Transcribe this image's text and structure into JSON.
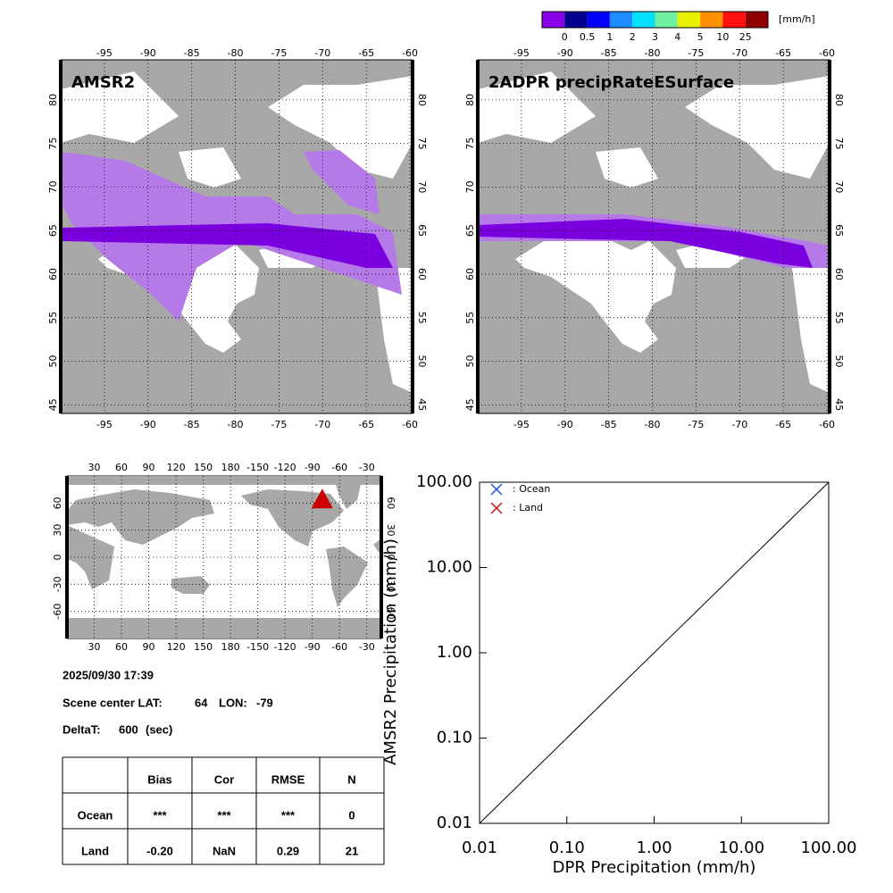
{
  "colorbar": {
    "unit": "[mm/h]",
    "labels": [
      "0",
      "0.5",
      "1",
      "2",
      "3",
      "4",
      "5",
      "10",
      "25"
    ],
    "colors": [
      "#8a00e6",
      "#00008c",
      "#0000ff",
      "#1e8cff",
      "#00e0ff",
      "#70f0a0",
      "#e8f000",
      "#ff9000",
      "#ff1010",
      "#900000"
    ]
  },
  "maps": [
    {
      "title": "AMSR2",
      "xlim": [
        -100,
        -59.7
      ],
      "ylim": [
        44,
        84.6
      ],
      "xticks": [
        -95,
        -90,
        -85,
        -80,
        -75,
        -70,
        -65,
        -60
      ],
      "yticks": [
        45,
        50,
        55,
        60,
        65,
        70,
        75,
        80
      ]
    },
    {
      "title": "2ADPR precipRateESurface",
      "xlim": [
        -100,
        -59.7
      ],
      "ylim": [
        44,
        84.6
      ],
      "xticks": [
        -95,
        -90,
        -85,
        -80,
        -75,
        -70,
        -65,
        -60
      ],
      "yticks": [
        45,
        50,
        55,
        60,
        65,
        70,
        75,
        80
      ]
    }
  ],
  "world_map": {
    "xlim": [
      0,
      346
    ],
    "ylim": [
      -90,
      90
    ],
    "xticks": [
      30,
      60,
      90,
      120,
      150,
      180,
      -150,
      -120,
      -90,
      -60,
      -30
    ],
    "yticks": [
      -60,
      -30,
      0,
      30,
      60
    ]
  },
  "info": {
    "datetime": "2025/09/30 17:39",
    "scene_label": "Scene center LAT:",
    "lat": 64,
    "lon_label": "LON:",
    "lon": -79,
    "deltat_label": "DeltaT:",
    "deltat": 600,
    "deltat_unit": "(sec)"
  },
  "table": {
    "header": [
      "Bias",
      "Cor",
      "RMSE",
      "N"
    ],
    "rows": [
      {
        "label": "Ocean",
        "cells": [
          "***",
          "***",
          "***",
          0
        ]
      },
      {
        "label": "Land",
        "cells": [
          "-0.20",
          "NaN",
          0.29,
          21
        ]
      }
    ]
  },
  "chart_data": {
    "type": "scatter",
    "log": true,
    "xlabel": "DPR Precipitation (mm/h)",
    "ylabel": "AMSR2 Precipitation (mm/h)",
    "xlim": [
      0.01,
      100
    ],
    "ylim": [
      0.01,
      100
    ],
    "xticks": [
      {
        "value": 0.01,
        "label": "0.01"
      },
      {
        "value": 0.1,
        "label": "0.10"
      },
      {
        "value": 1,
        "label": "1.00"
      },
      {
        "value": 10,
        "label": "10.00"
      },
      {
        "value": 100,
        "label": "100.00"
      }
    ],
    "yticks": [
      {
        "value": 0.01,
        "label": "0.01"
      },
      {
        "value": 0.1,
        "label": "0.10"
      },
      {
        "value": 1,
        "label": "1.00"
      },
      {
        "value": 10,
        "label": "10.00"
      },
      {
        "value": 100,
        "label": "100.00"
      }
    ],
    "series": [
      {
        "name": ": Ocean",
        "color": "#1a52d6",
        "x": [],
        "values": []
      },
      {
        "name": ": Land",
        "color": "#c01010",
        "x": [],
        "values": []
      }
    ]
  }
}
